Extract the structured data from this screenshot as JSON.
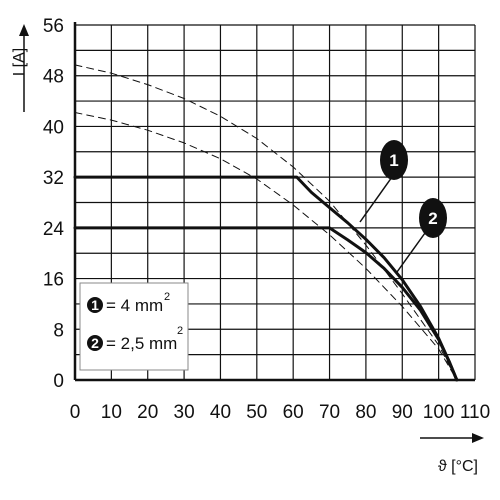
{
  "chart_data": {
    "type": "line",
    "xlabel": "ϑ [°C]",
    "ylabel": "I [A]",
    "xlim": [
      0,
      110
    ],
    "ylim": [
      0,
      56
    ],
    "x_ticks": [
      "0",
      "10",
      "20",
      "30",
      "40",
      "50",
      "60",
      "70",
      "80",
      "90",
      "100",
      "110"
    ],
    "y_ticks": [
      "0",
      "8",
      "16",
      "24",
      "32",
      "40",
      "48",
      "56"
    ],
    "grid": true,
    "legend_position": "bottom-left",
    "series": [
      {
        "name": "1",
        "legend_label": "= 4 mm",
        "legend_sup": "2",
        "style": "solid",
        "x": [
          0,
          61,
          65,
          70,
          75,
          80,
          85,
          90,
          95,
          100,
          103,
          105
        ],
        "y": [
          32,
          32,
          29.6,
          27.2,
          24.8,
          22.2,
          19.3,
          15.8,
          11.6,
          6.6,
          2.8,
          0
        ]
      },
      {
        "name": "2",
        "legend_label": "= 2,5 mm",
        "legend_sup": "2",
        "style": "solid",
        "x": [
          0,
          70,
          75,
          80,
          85,
          90,
          95,
          100,
          103,
          105
        ],
        "y": [
          24,
          24,
          22.1,
          20.1,
          17.6,
          14.6,
          11.0,
          6.4,
          2.8,
          0
        ]
      },
      {
        "style": "dashed",
        "x": [
          0,
          10,
          20,
          30,
          40,
          50,
          60,
          70,
          80,
          90,
          100,
          105
        ],
        "y": [
          49.7,
          48.4,
          46.6,
          44.4,
          41.6,
          38.1,
          33.6,
          28.2,
          21.3,
          13.6,
          5.5,
          0
        ]
      },
      {
        "style": "dashed",
        "x": [
          0,
          10,
          20,
          30,
          40,
          50,
          60,
          70,
          80,
          90,
          100,
          105
        ],
        "y": [
          42.2,
          41.0,
          39.4,
          37.4,
          34.9,
          31.7,
          27.6,
          22.9,
          17.6,
          11.6,
          4.9,
          0
        ]
      }
    ]
  }
}
